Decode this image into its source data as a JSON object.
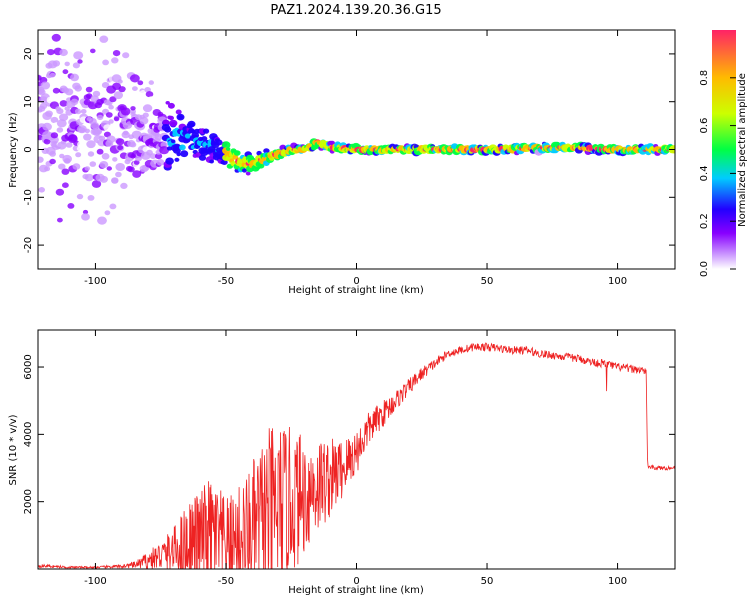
{
  "title": "PAZ1.2024.139.20.36.G15",
  "colors": {
    "snr_line": "#ee2222",
    "colormap": [
      "#ffffff",
      "#cc99ff",
      "#8800ff",
      "#2200ff",
      "#00ccff",
      "#00ff44",
      "#ccff00",
      "#ffbb00",
      "#ff2266"
    ]
  },
  "chart_data": [
    {
      "type": "heatmap",
      "name": "spectrogram",
      "xlabel": "Height of straight line (km)",
      "ylabel": "Frequency (Hz)",
      "xlim": [
        -122,
        122
      ],
      "ylim": [
        -25,
        25
      ],
      "xticks": [
        -100,
        -50,
        0,
        50,
        100
      ],
      "yticks": [
        -20,
        -10,
        0,
        10,
        20
      ],
      "colorbar": {
        "label": "Normalized spectral amplitude",
        "range": [
          0,
          1
        ],
        "ticks": [
          "0.0",
          "0.2",
          "0.4",
          "0.6",
          "0.8"
        ]
      },
      "ridge": {
        "x": [
          -122,
          -100,
          -90,
          -80,
          -70,
          -60,
          -50,
          -45,
          -40,
          -35,
          -30,
          -25,
          -20,
          -15,
          -10,
          0,
          20,
          50,
          80,
          100,
          122
        ],
        "center_hz": [
          6,
          5,
          4.5,
          3.5,
          2.5,
          1.5,
          -1,
          -2.5,
          -3,
          -2,
          -1,
          0,
          0,
          1.5,
          0.5,
          0,
          0,
          0,
          0.5,
          0,
          0
        ],
        "spread_hz": [
          25,
          25,
          22,
          14,
          8,
          5,
          4,
          3,
          2.5,
          2,
          1.5,
          1,
          0.8,
          1.5,
          1,
          1,
          1,
          1,
          1,
          1,
          1
        ]
      }
    },
    {
      "type": "line",
      "name": "snr",
      "xlabel": "Height of straight line (km)",
      "ylabel": "SNR (10 * v/v)",
      "xlim": [
        -122,
        122
      ],
      "ylim": [
        0,
        7100
      ],
      "xticks": [
        -100,
        -50,
        0,
        50,
        100
      ],
      "yticks": [
        2000,
        4000,
        6000
      ],
      "series": [
        {
          "x": [
            -122,
            -110,
            -100,
            -90,
            -85,
            -80,
            -75,
            -70,
            -65,
            -60,
            -55,
            -50,
            -45,
            -40,
            -35,
            -30,
            -25,
            -20,
            -15,
            -10,
            -5,
            0,
            5,
            10,
            15,
            20,
            25,
            30,
            35,
            40,
            45,
            50,
            55,
            60,
            65,
            70,
            75,
            80,
            85,
            90,
            95,
            100,
            105,
            110,
            111,
            111.5,
            115,
            122
          ],
          "y": [
            100,
            50,
            50,
            80,
            120,
            250,
            400,
            550,
            800,
            900,
            1000,
            700,
            900,
            1000,
            1500,
            1800,
            2000,
            2200,
            2500,
            2700,
            3000,
            3500,
            4200,
            4600,
            5000,
            5400,
            5800,
            6100,
            6400,
            6500,
            6600,
            6600,
            6550,
            6500,
            6500,
            6400,
            6350,
            6300,
            6250,
            6150,
            6100,
            6000,
            5950,
            5900,
            5800,
            3050,
            3000,
            3000
          ],
          "noise": [
            50,
            30,
            30,
            50,
            100,
            250,
            450,
            700,
            1200,
            1500,
            1800,
            1400,
            1600,
            2200,
            2600,
            2600,
            2200,
            1800,
            1500,
            1200,
            900,
            700,
            500,
            400,
            300,
            250,
            200,
            150,
            120,
            120,
            120,
            120,
            120,
            120,
            120,
            120,
            120,
            120,
            120,
            120,
            120,
            120,
            120,
            120,
            120,
            60,
            60,
            60
          ]
        }
      ]
    }
  ]
}
